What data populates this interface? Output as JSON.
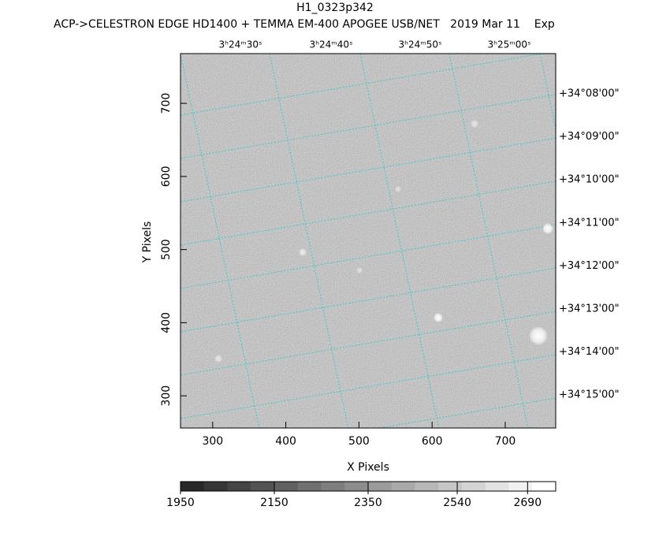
{
  "chart_data": {
    "type": "image",
    "title": "H1_0323p342",
    "subtitle": "ACP->CELESTRON EDGE HD1400 + TEMMA EM-400 APOGEE USB/NET   2019 Mar 11    Exp",
    "xlabel": "X Pixels",
    "ylabel": "Y Pixels",
    "xlim": [
      256,
      769
    ],
    "ylim": [
      256,
      768
    ],
    "xticks": [
      300,
      400,
      500,
      600,
      700
    ],
    "yticks": [
      300,
      400,
      500,
      600,
      700
    ],
    "ra_labels": [
      "3ʰ24ᵐ30ˢ",
      "3ʰ24ᵐ40ˢ",
      "3ʰ24ᵐ50ˢ",
      "3ʰ25ᵐ00ˢ"
    ],
    "dec_labels": [
      "+34°08'00\"",
      "+34°09'00\"",
      "+34°10'00\"",
      "+34°11'00\"",
      "+34°12'00\"",
      "+34°13'00\"",
      "+34°14'00\"",
      "+34°15'00\""
    ],
    "grid_color": "#3fc9c9",
    "colorbar": {
      "lim": [
        1950,
        2750
      ],
      "ticks": [
        1950,
        2150,
        2350,
        2540,
        2690
      ]
    }
  }
}
